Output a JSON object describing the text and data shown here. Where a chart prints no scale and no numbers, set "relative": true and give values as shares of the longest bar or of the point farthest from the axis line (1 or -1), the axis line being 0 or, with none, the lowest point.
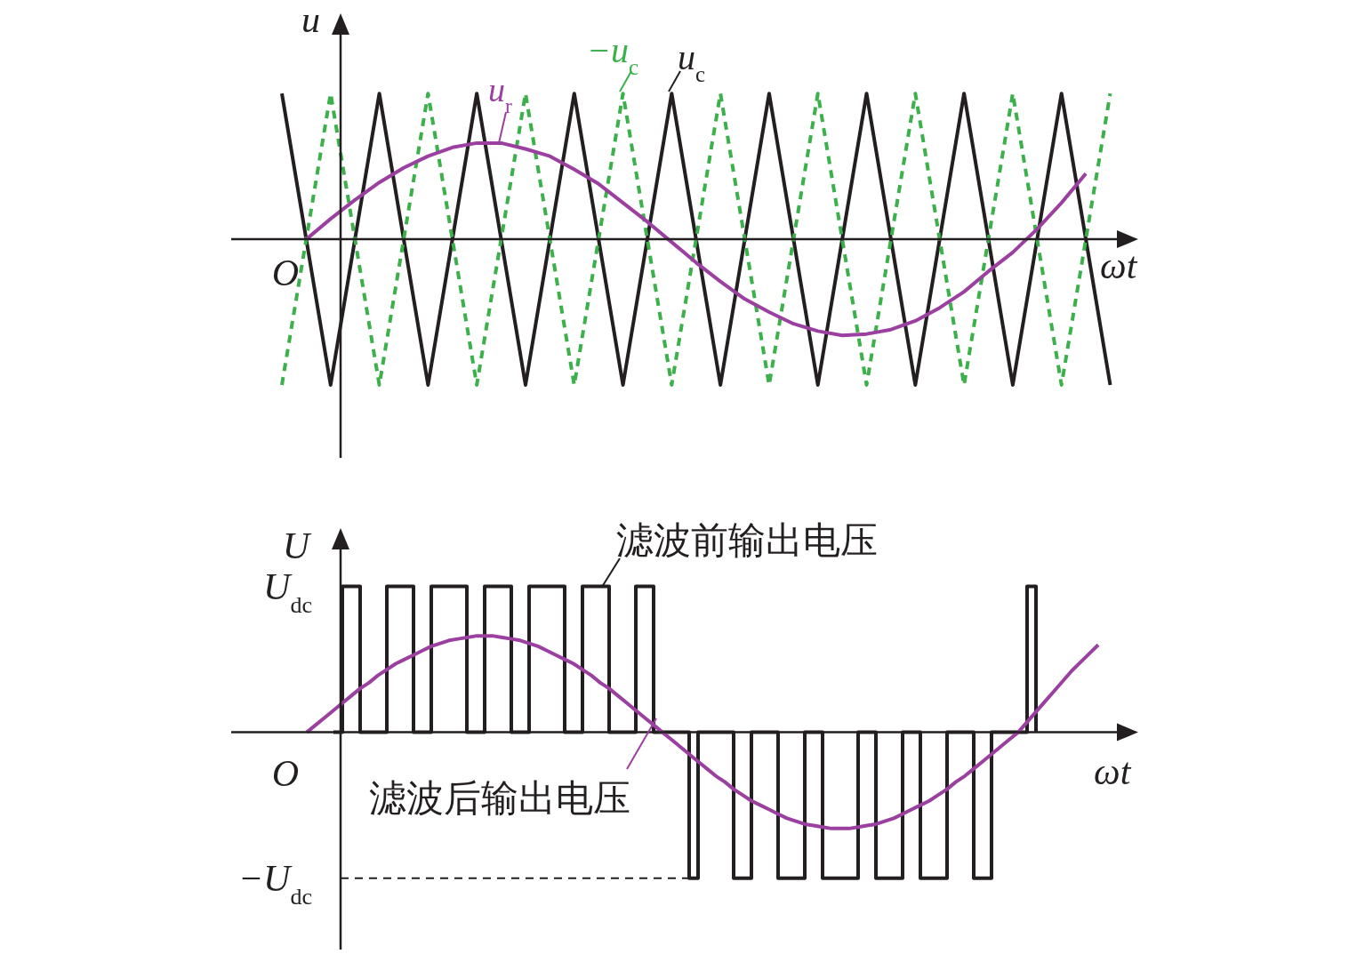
{
  "chart_data": [
    {
      "type": "line",
      "relative": true,
      "xlabel": "ωt",
      "ylabel": "u",
      "annotations": [
        "O"
      ],
      "grid": false,
      "categories": [
        null,
        null,
        null,
        null,
        null,
        null,
        null,
        null,
        null,
        null,
        null,
        null,
        null,
        null,
        null,
        null,
        null,
        null,
        null,
        null,
        null,
        null,
        null,
        null,
        null,
        null,
        null,
        null,
        null,
        null,
        null,
        null,
        null,
        null,
        null
      ],
      "series": [
        {
          "name": "u$_{c}$",
          "color": "#231f20",
          "values": [
            1,
            0,
            -1,
            0,
            1,
            0,
            -1,
            0,
            1,
            0,
            -1,
            0,
            1,
            0,
            -1,
            0,
            1,
            0,
            -1,
            0,
            1,
            0,
            -1,
            0,
            1,
            0,
            -1,
            0,
            1,
            0,
            -1,
            0,
            1,
            0,
            -1
          ]
        },
        {
          "name": "−u$_{c}$",
          "color": "#3cb04a",
          "line_style": "dashed",
          "values": [
            -1,
            0,
            1,
            0,
            -1,
            0,
            1,
            0,
            -1,
            0,
            1,
            0,
            -1,
            0,
            1,
            0,
            -1,
            0,
            1,
            0,
            -1,
            0,
            1,
            0,
            -1,
            0,
            1,
            0,
            -1,
            0,
            1,
            0,
            -1,
            0,
            1
          ]
        },
        {
          "name": "u$_{r}$",
          "color": "#9b3fa0",
          "values": [
            null,
            0,
            0.14,
            0.27,
            0.39,
            0.49,
            0.57,
            0.63,
            0.66,
            0.66,
            0.62,
            0.57,
            0.48,
            0.38,
            0.25,
            0.12,
            -0.02,
            -0.16,
            -0.29,
            -0.41,
            -0.5,
            -0.58,
            -0.63,
            -0.66,
            -0.65,
            -0.62,
            -0.56,
            -0.47,
            -0.36,
            -0.22,
            -0.09,
            0.07,
            0.25,
            0.45,
            null
          ]
        }
      ]
    },
    {
      "type": "line",
      "relative": true,
      "xlabel": "ωt",
      "ylabel": "U",
      "grid": false,
      "annotations": [
        "O",
        "U$_{dc}$",
        "−U$_{dc}$"
      ],
      "ref_lines": [
        {
          "axis": "y",
          "value": -1,
          "color": "#231f20",
          "line_style": "dashed"
        }
      ],
      "categories": [
        null,
        null,
        null,
        null,
        null,
        null,
        null,
        null,
        null,
        null,
        null,
        null,
        null,
        null,
        null,
        null,
        null,
        null,
        null,
        null,
        null,
        null,
        null,
        null,
        null,
        null,
        null,
        null,
        null,
        null,
        null,
        null,
        null,
        null,
        null,
        null,
        null,
        null,
        null,
        null,
        null,
        null,
        null,
        null,
        null,
        null,
        null,
        null,
        null,
        null,
        null,
        null,
        null,
        null,
        null,
        null,
        null,
        null,
        null,
        null,
        null,
        null,
        null,
        null,
        null,
        null,
        null,
        null,
        null,
        null,
        null,
        null,
        null,
        null,
        null,
        null,
        null,
        null,
        null,
        null,
        null,
        null,
        null,
        null,
        null,
        null,
        null,
        null,
        null,
        null,
        null
      ],
      "series": [
        {
          "name": "滤波前输出电压",
          "type": "step",
          "color": "#231f20",
          "values": [
            null,
            null,
            null,
            0,
            1,
            1,
            0,
            0,
            0,
            1,
            1,
            1,
            0,
            0,
            1,
            1,
            1,
            1,
            0,
            0,
            1,
            1,
            1,
            0,
            0,
            1,
            1,
            1,
            1,
            0,
            0,
            1,
            1,
            1,
            0,
            0,
            0,
            1,
            1,
            0,
            0,
            0,
            0,
            -1,
            0,
            0,
            0,
            0,
            -1,
            -1,
            0,
            0,
            0,
            -1,
            -1,
            -1,
            0,
            0,
            -1,
            -1,
            -1,
            -1,
            0,
            0,
            -1,
            -1,
            -1,
            0,
            0,
            -1,
            -1,
            -1,
            0,
            0,
            0,
            -1,
            -1,
            0,
            0,
            0,
            0,
            1,
            0,
            null,
            null,
            null,
            null,
            null,
            null,
            null,
            null
          ]
        },
        {
          "name": "滤波后输出电压",
          "color": "#9b3fa0",
          "values": [
            0,
            0.05,
            0.1,
            0.15,
            0.2,
            0.25,
            0.3,
            0.34,
            0.39,
            0.43,
            0.47,
            0.5,
            0.53,
            0.56,
            0.59,
            0.61,
            0.63,
            0.64,
            0.65,
            0.66,
            0.66,
            0.66,
            0.65,
            0.64,
            0.63,
            0.61,
            0.59,
            0.56,
            0.53,
            0.5,
            0.47,
            0.43,
            0.39,
            0.34,
            0.3,
            0.25,
            0.2,
            0.15,
            0.1,
            0.05,
            0,
            -0.05,
            -0.1,
            -0.15,
            -0.2,
            -0.25,
            -0.3,
            -0.34,
            -0.39,
            -0.43,
            -0.47,
            -0.5,
            -0.53,
            -0.56,
            -0.59,
            -0.61,
            -0.63,
            -0.64,
            -0.65,
            -0.66,
            -0.66,
            -0.66,
            -0.65,
            -0.64,
            -0.63,
            -0.61,
            -0.59,
            -0.56,
            -0.53,
            -0.5,
            -0.47,
            -0.43,
            -0.39,
            -0.34,
            -0.3,
            -0.25,
            -0.2,
            -0.15,
            -0.1,
            -0.05,
            0,
            0.07,
            0.14,
            0.21,
            0.28,
            0.35,
            0.42,
            0.48,
            0.54,
            0.6,
            null
          ]
        }
      ]
    }
  ]
}
